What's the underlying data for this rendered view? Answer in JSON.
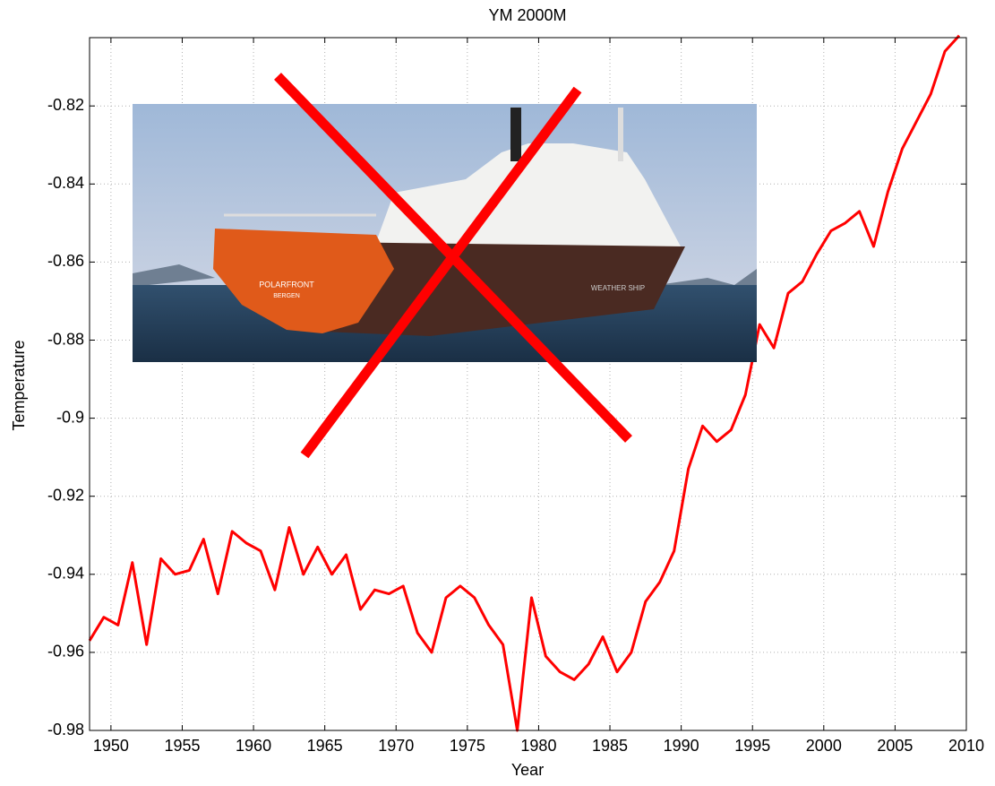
{
  "chart_data": {
    "type": "line",
    "title": "YM 2000M",
    "xlabel": "Year",
    "ylabel": "Temperature",
    "photo_text": [
      "POLARFRONT",
      "BERGEN",
      "WEATHER SHIP"
    ],
    "x": [
      1948.5,
      1949.5,
      1950.5,
      1951.5,
      1952.5,
      1953.5,
      1954.5,
      1955.5,
      1956.5,
      1957.5,
      1958.5,
      1959.5,
      1960.5,
      1961.5,
      1962.5,
      1963.5,
      1964.5,
      1965.5,
      1966.5,
      1967.5,
      1968.5,
      1969.5,
      1970.5,
      1971.5,
      1972.5,
      1973.5,
      1974.5,
      1975.5,
      1976.5,
      1977.5,
      1978.5,
      1979.5,
      1980.5,
      1981.5,
      1982.5,
      1983.5,
      1984.5,
      1985.5,
      1986.5,
      1987.5,
      1988.5,
      1989.5,
      1990.5,
      1991.5,
      1992.5,
      1993.5,
      1994.5,
      1995.5,
      1996.5,
      1997.5,
      1998.5,
      1999.5,
      2000.5,
      2001.5,
      2002.5,
      2003.5,
      2004.5,
      2005.5,
      2006.5,
      2007.5,
      2008.5,
      2009.5
    ],
    "series": [
      {
        "name": "YM 2000M",
        "color": "#ff0000",
        "values": [
          -0.957,
          -0.951,
          -0.953,
          -0.937,
          -0.958,
          -0.936,
          -0.94,
          -0.939,
          -0.931,
          -0.945,
          -0.929,
          -0.932,
          -0.934,
          -0.944,
          -0.928,
          -0.94,
          -0.933,
          -0.94,
          -0.935,
          -0.949,
          -0.944,
          -0.945,
          -0.943,
          -0.955,
          -0.96,
          -0.946,
          -0.943,
          -0.946,
          -0.953,
          -0.958,
          -0.98,
          -0.946,
          -0.961,
          -0.965,
          -0.967,
          -0.963,
          -0.956,
          -0.965,
          -0.96,
          -0.947,
          -0.942,
          -0.934,
          -0.913,
          -0.902,
          -0.906,
          -0.903,
          -0.894,
          -0.876,
          -0.882,
          -0.868,
          -0.865,
          -0.858,
          -0.852,
          -0.85,
          -0.847,
          -0.856,
          -0.842,
          -0.831,
          -0.824,
          -0.817,
          -0.806,
          -0.802
        ]
      }
    ],
    "xlim": [
      1948.5,
      2010
    ],
    "xticks": [
      1950,
      1955,
      1960,
      1965,
      1970,
      1975,
      1980,
      1985,
      1990,
      1995,
      2000,
      2005,
      2010
    ],
    "ylim": [
      -0.98,
      -0.8025
    ],
    "yticks": [
      -0.98,
      -0.96,
      -0.94,
      -0.92,
      -0.9,
      -0.88,
      -0.86,
      -0.84,
      -0.82
    ],
    "grid": true
  }
}
